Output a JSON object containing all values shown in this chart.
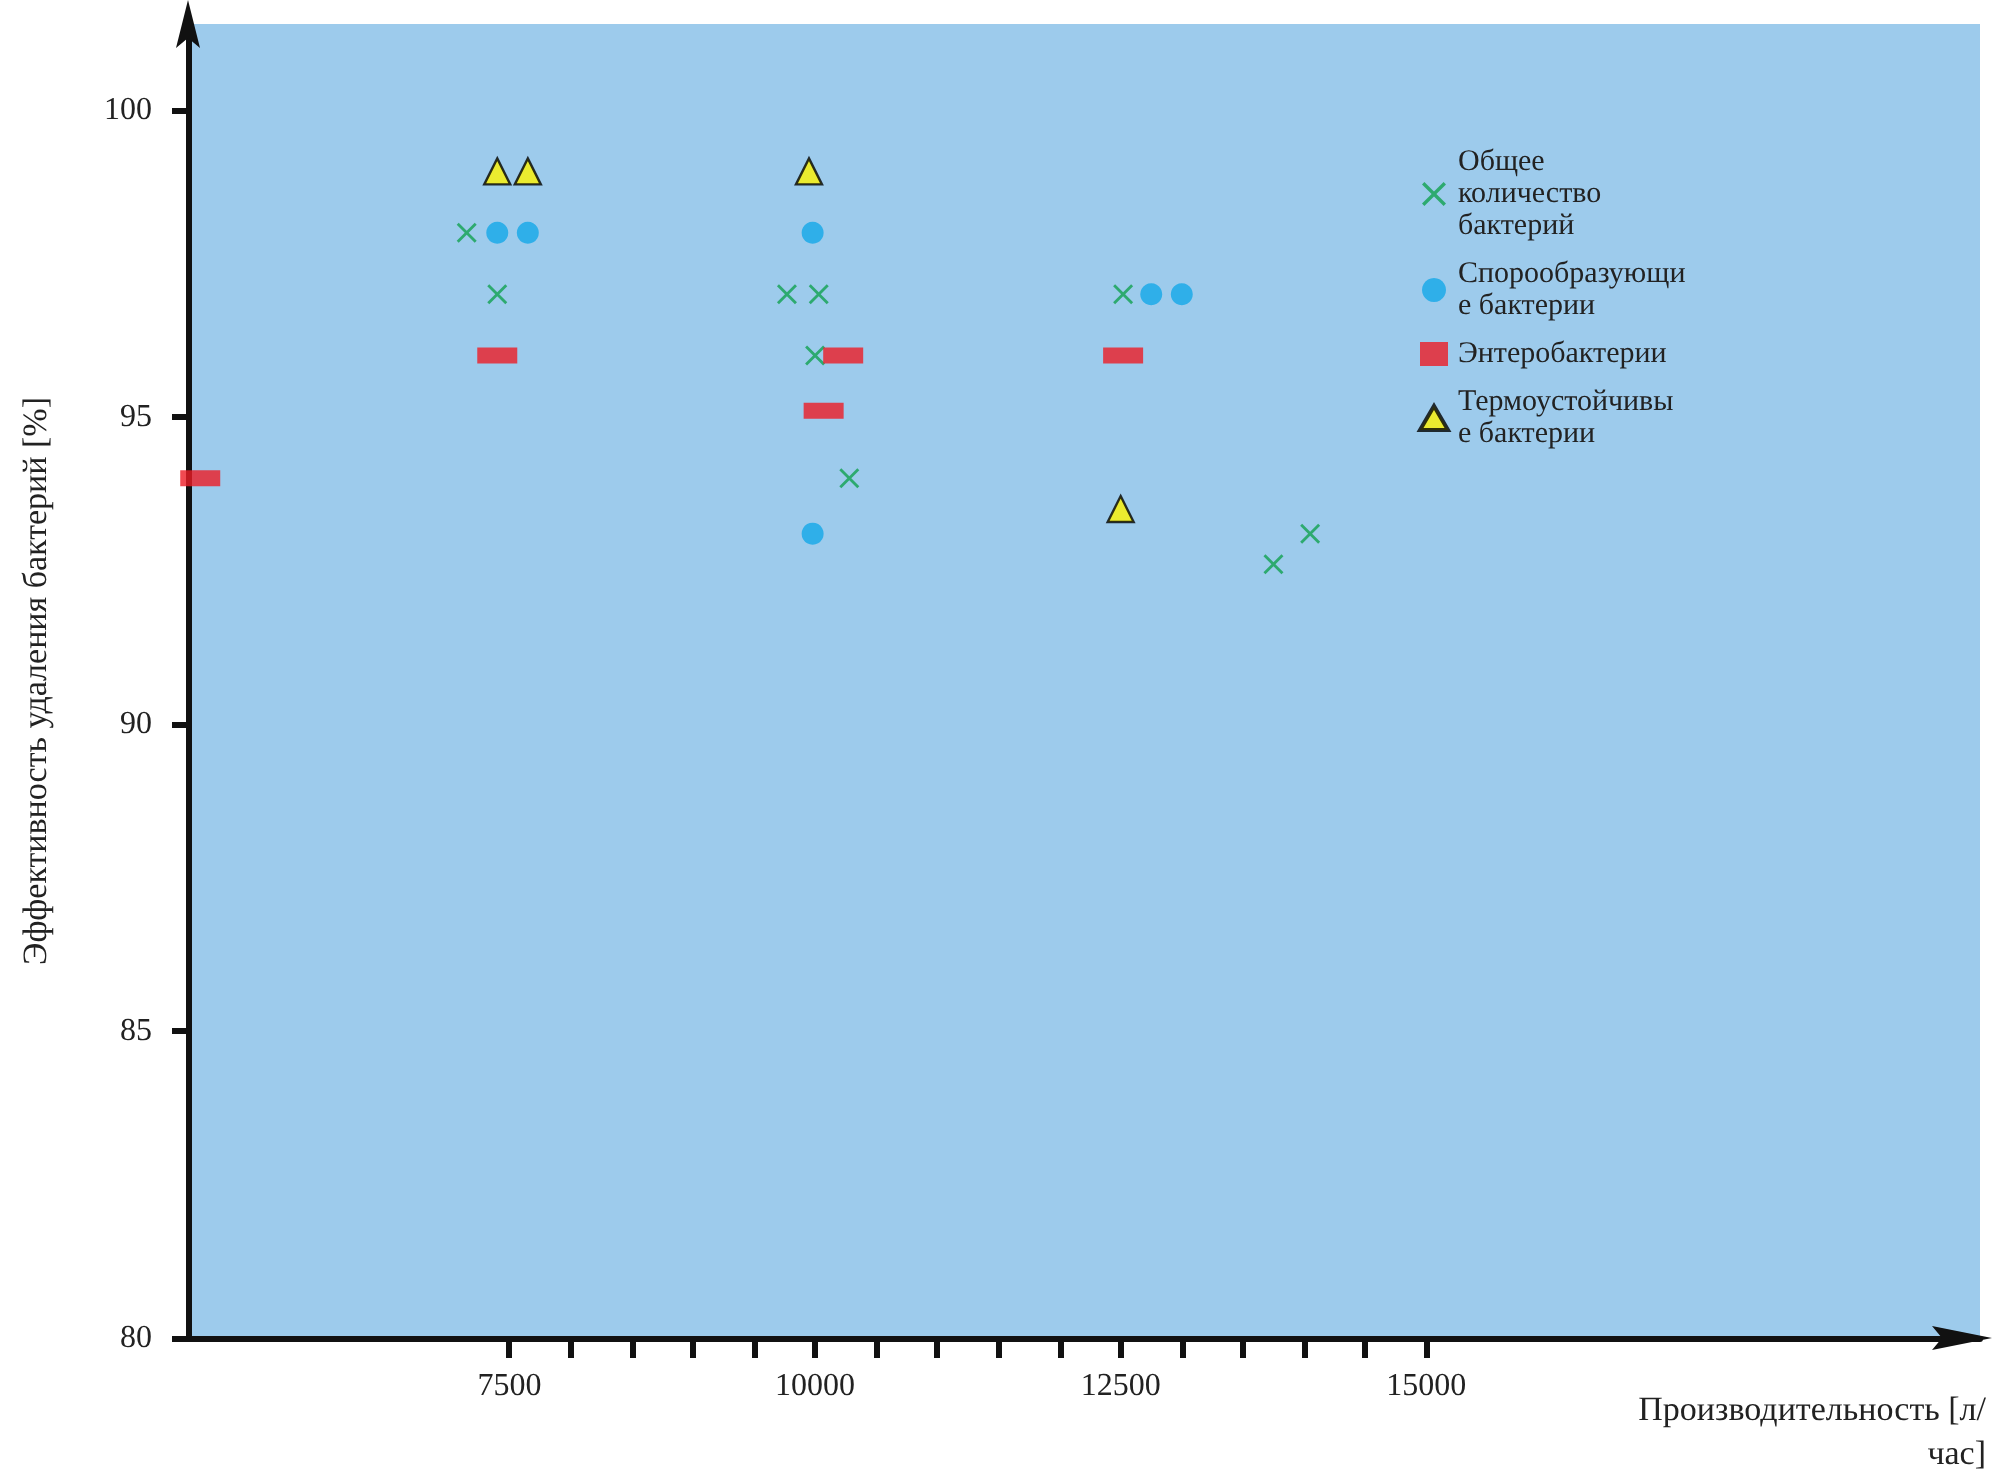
{
  "chart_data": {
    "type": "scatter",
    "xlabel": "Производительность [л/час]",
    "ylabel": "Эффективность удаления бактерий [%]",
    "xlim": [
      4870,
      19530
    ],
    "ylim": [
      80,
      101.4
    ],
    "xticks": [
      7500,
      {
        "value": 8000,
        "label": null
      },
      {
        "value": 8500,
        "label": null
      },
      {
        "value": 9000,
        "label": null
      },
      {
        "value": 9500,
        "label": null
      },
      10000,
      {
        "value": 10500,
        "label": null
      },
      {
        "value": 11000,
        "label": null
      },
      {
        "value": 11500,
        "label": null
      },
      {
        "value": 12000,
        "label": null
      },
      12500,
      {
        "value": 13000,
        "label": null
      },
      {
        "value": 13500,
        "label": null
      },
      {
        "value": 14000,
        "label": null
      },
      {
        "value": 14500,
        "label": null
      },
      15000
    ],
    "yticks": [
      80,
      85,
      90,
      95,
      100
    ],
    "grid": false,
    "legend": "top right",
    "series": [
      {
        "name": "Общее количество бактерий",
        "color": "#12a150",
        "marker": "cross",
        "x": [
          7150,
          7400,
          9770,
          10030,
          10000,
          10280,
          12520,
          13750,
          14050
        ],
        "values": [
          98,
          97,
          97,
          97,
          96,
          94,
          97,
          92.6,
          93.1
        ]
      },
      {
        "name": "Спорообразующие бактерии",
        "color": "#14a7e8",
        "marker": "circle",
        "x": [
          7400,
          7650,
          9980,
          9980,
          12750,
          13000
        ],
        "values": [
          98,
          98,
          98,
          93.1,
          97,
          97
        ]
      },
      {
        "name": "Энтеробактерии",
        "color": "#ee1c25",
        "marker": "square",
        "x": [
          4970,
          7400,
          10070,
          10230,
          12520
        ],
        "values": [
          94,
          96,
          95.1,
          96,
          96
        ]
      },
      {
        "name": "Термоустойчивые бактерии",
        "color": "#fff200",
        "marker": "triangle",
        "x": [
          7400,
          7650,
          9950,
          12500
        ],
        "values": [
          99,
          99,
          99,
          93.5
        ]
      }
    ]
  }
}
